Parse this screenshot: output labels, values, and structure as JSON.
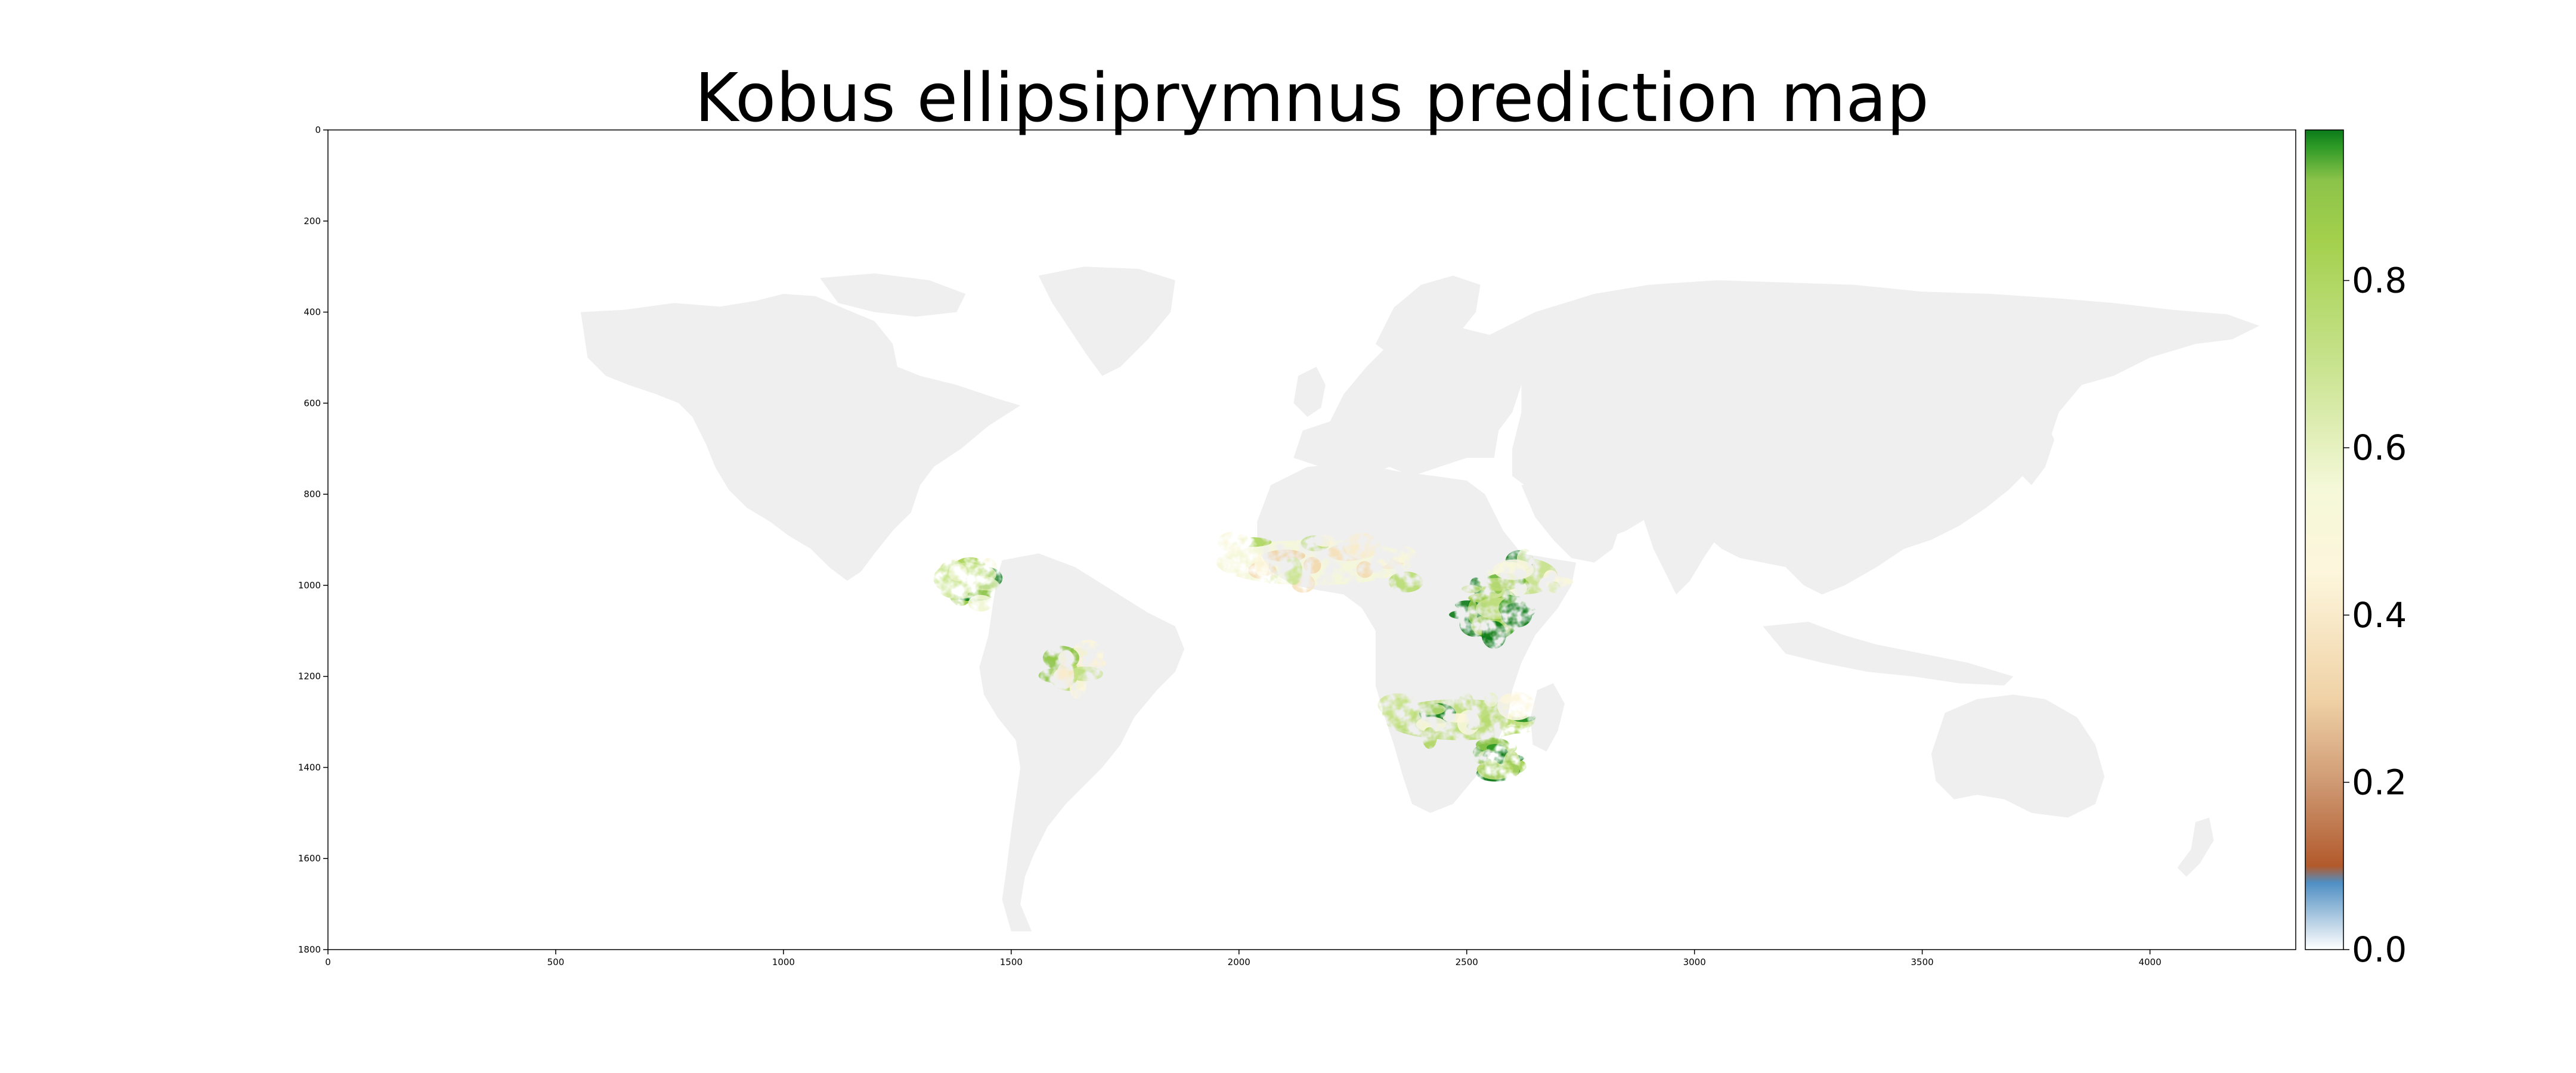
{
  "title": "Kobus ellipsiprymnus prediction map",
  "colors": {
    "land": "#efefef",
    "frame": "#000000",
    "background": "#ffffff"
  },
  "chart_data": {
    "type": "heatmap",
    "title": "Kobus ellipsiprymnus prediction map",
    "xlim": [
      0,
      4320
    ],
    "ylim": [
      1800,
      0
    ],
    "x_ticks": [
      0,
      500,
      1000,
      1500,
      2000,
      2500,
      3000,
      3500,
      4000
    ],
    "y_ticks": [
      0,
      200,
      400,
      600,
      800,
      1000,
      1200,
      1400,
      1600,
      1800
    ],
    "x_tick_labels": [
      "0",
      "500",
      "1000",
      "1500",
      "2000",
      "2500",
      "3000",
      "3500",
      "4000"
    ],
    "y_tick_labels": [
      "0",
      "200",
      "400",
      "600",
      "800",
      "1000",
      "1200",
      "1400",
      "1600",
      "1800"
    ],
    "colorbar": {
      "range": [
        0.0,
        0.98
      ],
      "ticks": [
        0.0,
        0.2,
        0.4,
        0.6,
        0.8
      ],
      "tick_labels": [
        "0.0",
        "0.2",
        "0.4",
        "0.6",
        "0.8"
      ],
      "stops": [
        {
          "value": 0.0,
          "color": "#ffffff"
        },
        {
          "value": 0.04,
          "color": "#a9c7e0"
        },
        {
          "value": 0.08,
          "color": "#4f8fc4"
        },
        {
          "value": 0.1,
          "color": "#b25a2c"
        },
        {
          "value": 0.2,
          "color": "#cf9a74"
        },
        {
          "value": 0.3,
          "color": "#f0d2a6"
        },
        {
          "value": 0.45,
          "color": "#fdf6dc"
        },
        {
          "value": 0.55,
          "color": "#f5f8d9"
        },
        {
          "value": 0.7,
          "color": "#c8e38e"
        },
        {
          "value": 0.85,
          "color": "#a3d04c"
        },
        {
          "value": 0.92,
          "color": "#8bc34a"
        },
        {
          "value": 0.96,
          "color": "#2e9a26"
        },
        {
          "value": 0.98,
          "color": "#0b7a1a"
        }
      ]
    },
    "prediction_patches": [
      {
        "region": "West African Sahel",
        "x_range": [
          1950,
          2380
        ],
        "y_range": [
          900,
          1000
        ],
        "value": 0.55
      },
      {
        "region": "East Africa core",
        "x_range": [
          2500,
          2620
        ],
        "y_range": [
          1000,
          1120
        ],
        "value": 0.95
      },
      {
        "region": "East African highlands",
        "x_range": [
          2550,
          2700
        ],
        "y_range": [
          940,
          1020
        ],
        "value": 0.7
      },
      {
        "region": "Southern African belt",
        "x_range": [
          2320,
          2650
        ],
        "y_range": [
          1250,
          1340
        ],
        "value": 0.75
      },
      {
        "region": "South-east Africa",
        "x_range": [
          2540,
          2600
        ],
        "y_range": [
          1350,
          1420
        ],
        "value": 0.95
      },
      {
        "region": "Northern South America",
        "x_range": [
          1370,
          1450
        ],
        "y_range": [
          960,
          1040
        ],
        "value": 0.8
      },
      {
        "region": "Eastern Brazil",
        "x_range": [
          1600,
          1670
        ],
        "y_range": [
          1150,
          1230
        ],
        "value": 0.7
      }
    ]
  }
}
